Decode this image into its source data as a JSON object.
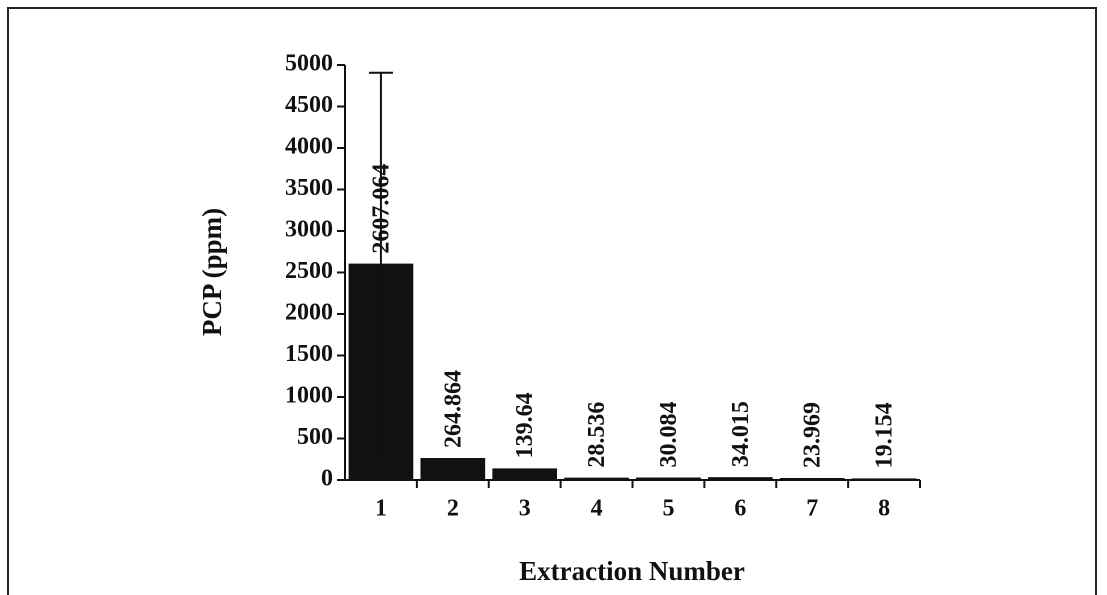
{
  "chart_data": {
    "type": "bar",
    "xlabel": "Extraction Number",
    "ylabel": "PCP (ppm)",
    "categories": [
      "1",
      "2",
      "3",
      "4",
      "5",
      "6",
      "7",
      "8"
    ],
    "values": [
      2607.064,
      264.864,
      139.64,
      28.536,
      30.084,
      34.015,
      23.969,
      19.154
    ],
    "errors": [
      2300,
      null,
      null,
      null,
      null,
      null,
      null,
      null
    ],
    "color": "#111111",
    "ylim": [
      0,
      5000
    ],
    "yticks": [
      0,
      500,
      1000,
      1500,
      2000,
      2500,
      3000,
      3500,
      4000,
      4500,
      5000
    ],
    "grid": false
  }
}
